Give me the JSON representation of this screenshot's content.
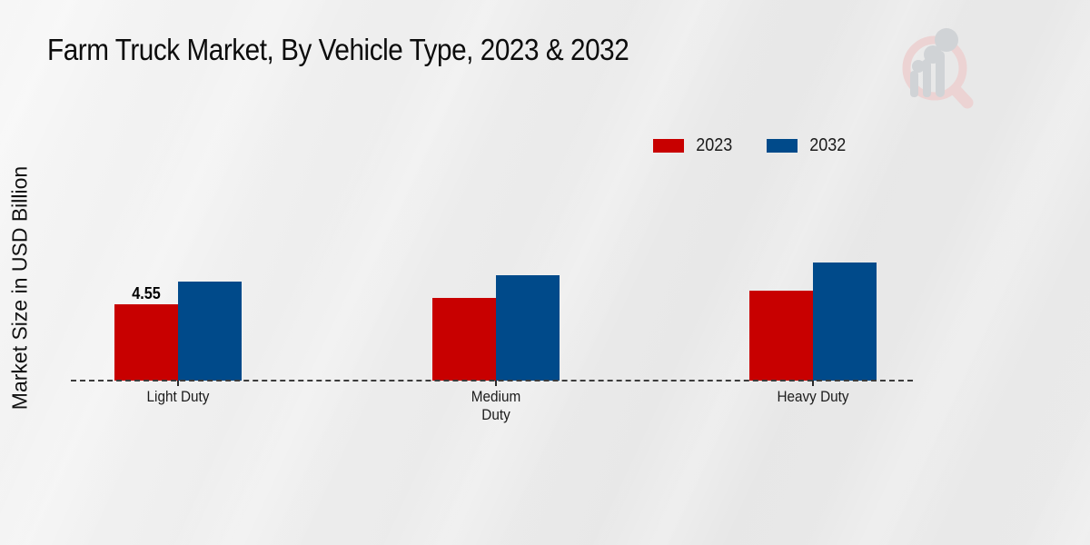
{
  "title": "Farm Truck Market, By Vehicle Type, 2023 & 2032",
  "y_axis_label": "Market Size in USD Billion",
  "legend": {
    "items": [
      {
        "label": "2023",
        "color": "#C80000"
      },
      {
        "label": "2032",
        "color": "#004A8A"
      }
    ]
  },
  "chart_data": {
    "type": "bar",
    "title": "Farm Truck Market, By Vehicle Type, 2023 & 2032",
    "xlabel": "",
    "ylabel": "Market Size in USD Billion",
    "categories": [
      "Light Duty",
      "Medium Duty",
      "Heavy Duty"
    ],
    "category_labels": [
      "Light Duty",
      "Medium\nDuty",
      "Heavy Duty"
    ],
    "series": [
      {
        "name": "2023",
        "color": "#C80000",
        "values": [
          4.55,
          4.93,
          5.36
        ]
      },
      {
        "name": "2032",
        "color": "#004A8A",
        "values": [
          5.91,
          6.28,
          7.04
        ]
      }
    ],
    "data_labels": [
      {
        "category_index": 0,
        "series_index": 0,
        "text": "4.55"
      }
    ],
    "ylim": [
      0,
      7.6
    ],
    "grid": false,
    "legend_position": "top-right",
    "x_axis_line_style": "dashed",
    "y_axis_ticks_visible": false
  },
  "colors": {
    "background": "#ebebeb",
    "axis_line": "#3c3c3c",
    "text": "#1a1a1a",
    "footer_strip": "#C00000",
    "watermark_pink": "#ecd3d3",
    "watermark_gray": "#d0d3d6"
  },
  "watermark": {
    "name": "market-research-future-logo"
  }
}
